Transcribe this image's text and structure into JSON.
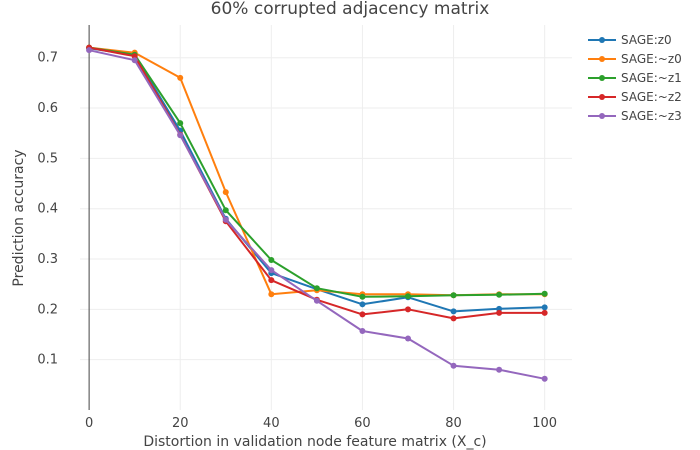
{
  "chart_data": {
    "type": "line",
    "title": "60% corrupted adjacency matrix",
    "xlabel": "Distortion in validation node feature matrix (X_c)",
    "ylabel": "Prediction accuracy",
    "xlim": [
      -2,
      106
    ],
    "ylim": [
      0,
      0.765
    ],
    "xticks": [
      0,
      20,
      40,
      60,
      80,
      100
    ],
    "yticks": [
      0.1,
      0.2,
      0.3,
      0.4,
      0.5,
      0.6,
      0.7
    ],
    "x": [
      0,
      10,
      20,
      30,
      40,
      50,
      60,
      70,
      80,
      90,
      100
    ],
    "legend_position": "top-right",
    "series": [
      {
        "name": "SAGE:z0",
        "color": "#1f77b4",
        "values": [
          0.719,
          0.705,
          0.555,
          0.38,
          0.272,
          0.24,
          0.21,
          0.224,
          0.196,
          0.201,
          0.204
        ]
      },
      {
        "name": "SAGE:~z0",
        "color": "#ff7f0e",
        "values": [
          0.72,
          0.71,
          0.66,
          0.433,
          0.23,
          0.238,
          0.23,
          0.23,
          0.228,
          0.23,
          0.23
        ]
      },
      {
        "name": "SAGE:~z1",
        "color": "#2ca02c",
        "values": [
          0.72,
          0.706,
          0.57,
          0.397,
          0.298,
          0.242,
          0.225,
          0.226,
          0.228,
          0.229,
          0.231
        ]
      },
      {
        "name": "SAGE:~z2",
        "color": "#d62728",
        "values": [
          0.72,
          0.703,
          0.547,
          0.375,
          0.258,
          0.219,
          0.19,
          0.2,
          0.182,
          0.193,
          0.193
        ]
      },
      {
        "name": "SAGE:~z3",
        "color": "#9467bd",
        "values": [
          0.715,
          0.695,
          0.546,
          0.378,
          0.278,
          0.217,
          0.157,
          0.142,
          0.088,
          0.08,
          0.062
        ]
      }
    ]
  }
}
